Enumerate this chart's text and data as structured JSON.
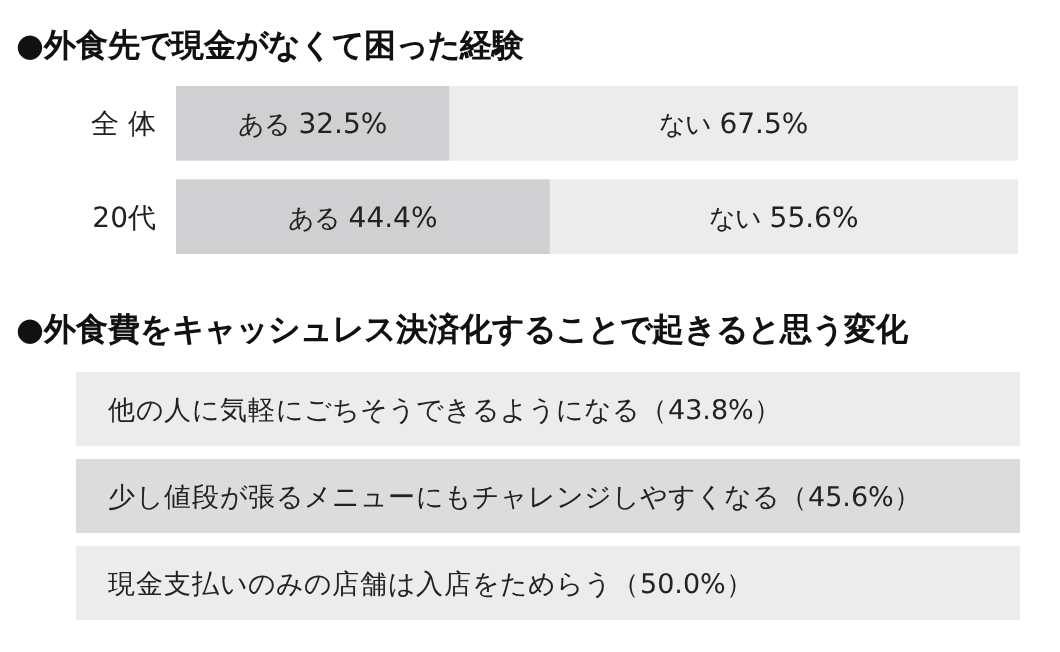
{
  "chart_data": [
    {
      "type": "bar",
      "orientation": "horizontal",
      "stacked": true,
      "title": "●外食先で現金がなくて困った経験",
      "categories": [
        "全 体",
        "20代"
      ],
      "xlim": [
        0,
        100
      ],
      "tick_labels": "y",
      "series": [
        {
          "name": "ある",
          "color": "#d0d0d2",
          "values": [
            32.5,
            44.4
          ],
          "value_labels": [
            "32.5%",
            "44.4%"
          ]
        },
        {
          "name": "ない",
          "color": "#ececec",
          "values": [
            67.5,
            55.6
          ],
          "value_labels": [
            "67.5%",
            "55.6%"
          ]
        }
      ]
    },
    {
      "type": "other",
      "title": "●外食費をキャッシュレス決済化することで起きると思う変化",
      "categories": [
        "他の人に気軽にごちそうできるようになる",
        "少し値段が張るメニューにもチャレンジしやすくなる",
        "現金支払いのみの店舗は入店をためらう"
      ],
      "value_labels": [
        "（43.8%）",
        "（45.6%）",
        "（50.0%）"
      ],
      "colors": [
        "#ececec",
        "#dcdcdc",
        "#ececec"
      ]
    }
  ]
}
